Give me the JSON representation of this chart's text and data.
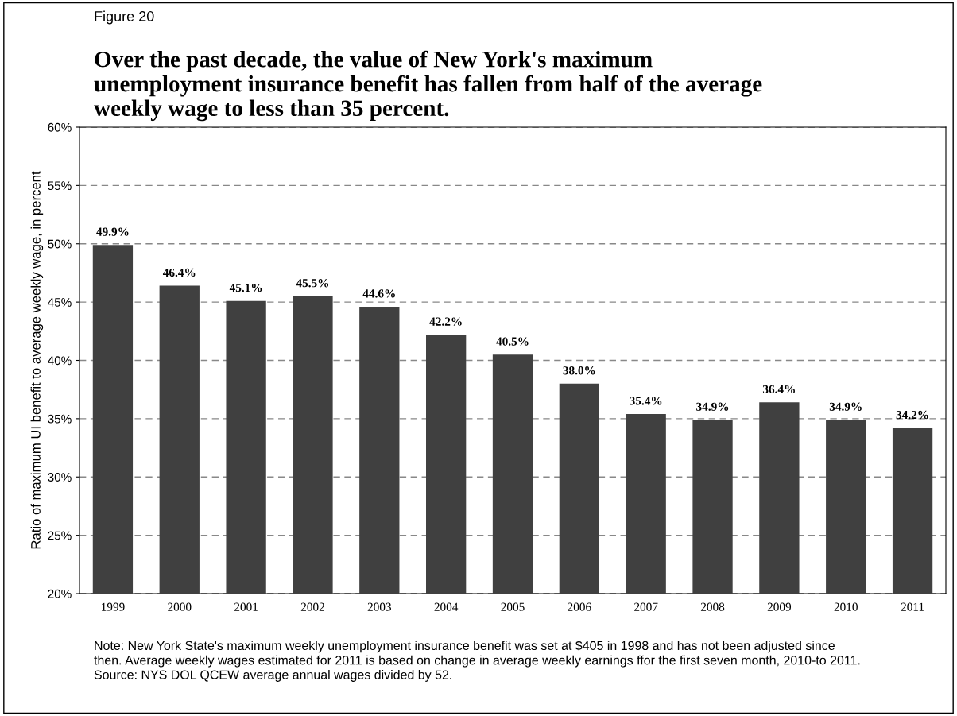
{
  "chart_data": {
    "type": "bar",
    "title": "Over the past decade, the value of New York's maximum\nunemployment insurance benefit has fallen from half of the average\nweekly wage to less than 35 percent.",
    "ylabel": "Ratio of maximum UI benefit to average weekly wage, in percent",
    "categories": [
      "1999",
      "2000",
      "2001",
      "2002",
      "2003",
      "2004",
      "2005",
      "2006",
      "2007",
      "2008",
      "2009",
      "2010",
      "2011"
    ],
    "values": [
      49.9,
      46.4,
      45.1,
      45.5,
      44.6,
      42.2,
      40.5,
      38.0,
      35.4,
      34.9,
      36.4,
      34.9,
      34.2
    ],
    "value_labels": [
      "49.9%",
      "46.4%",
      "45.1%",
      "45.5%",
      "44.6%",
      "42.2%",
      "40.5%",
      "38.0%",
      "35.4%",
      "34.9%",
      "36.4%",
      "34.9%",
      "34.2%"
    ],
    "color": "#404040",
    "ylim": [
      20,
      60
    ],
    "yticks": [
      {
        "value": 20,
        "label": "20%"
      },
      {
        "value": 25,
        "label": "25%"
      },
      {
        "value": 30,
        "label": "30%"
      },
      {
        "value": 35,
        "label": "35%"
      },
      {
        "value": 40,
        "label": "40%"
      },
      {
        "value": 45,
        "label": "45%"
      },
      {
        "value": 50,
        "label": "50%"
      },
      {
        "value": 55,
        "label": "55%"
      },
      {
        "value": 60,
        "label": "60%"
      }
    ],
    "grid": "y",
    "line_style": "dashed",
    "annotations": [
      "Figure 20",
      "Note: New York State's maximum weekly unemployment insurance benefit was set at $405 in 1998 and has not been adjusted since\nthen. Average weekly wages estimated for 2011 is based on change in average weekly earnings ffor the first seven month, 2010-to 2011.\nSource: NYS DOL QCEW average annual wages divided by 52."
    ]
  }
}
